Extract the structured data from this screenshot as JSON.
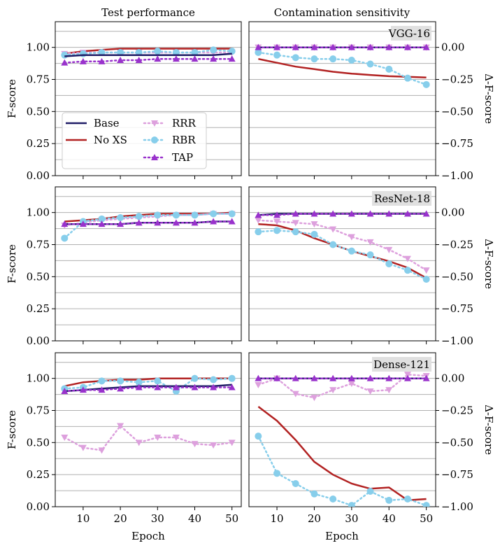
{
  "figure": {
    "column_titles": [
      "Test performance",
      "Contamination sensitivity"
    ],
    "left_ylabel": "F-score",
    "right_ylabel": "Δ-F-score",
    "xlabel": "Epoch"
  },
  "colors": {
    "Base": "#1f1c66",
    "No XS": "#b22222",
    "RRR": "#dda0dd",
    "RBR": "#87ceeb",
    "TAP": "#9932cc"
  },
  "chart_data": [
    {
      "type": "line",
      "row": 0,
      "col": 0,
      "model": "",
      "title": "Test performance",
      "xlabel": "",
      "ylabel": "F-score",
      "xlim": [
        2.5,
        52.5
      ],
      "ylim": [
        0,
        1.2
      ],
      "yticks": [
        0.0,
        0.25,
        0.5,
        0.75,
        1.0
      ],
      "ytick_labels": [
        "0.00",
        "0.25",
        "0.50",
        "0.75",
        "1.00"
      ],
      "grid": true,
      "legend": {
        "position": "center-left",
        "ncol": 2,
        "entries": [
          "Base",
          "No XS",
          "RRR",
          "RBR",
          "TAP"
        ]
      },
      "series": [
        {
          "name": "Base",
          "style": "solid",
          "marker": "none",
          "x": [
            5,
            10,
            15,
            20,
            25,
            30,
            35,
            40,
            45,
            50
          ],
          "y": [
            0.93,
            0.94,
            0.94,
            0.94,
            0.94,
            0.94,
            0.94,
            0.94,
            0.94,
            0.95
          ]
        },
        {
          "name": "No XS",
          "style": "solid",
          "marker": "none",
          "x": [
            5,
            10,
            15,
            20,
            25,
            30,
            35,
            40,
            45,
            50
          ],
          "y": [
            0.95,
            0.97,
            0.98,
            0.99,
            0.99,
            0.99,
            0.99,
            0.99,
            0.99,
            0.99
          ]
        },
        {
          "name": "RRR",
          "style": "dotted",
          "marker": "triangle-down",
          "x": [
            5,
            10,
            15,
            20,
            25,
            30,
            35,
            40,
            45,
            50
          ],
          "y": [
            0.95,
            0.96,
            0.96,
            0.96,
            0.96,
            0.96,
            0.96,
            0.96,
            0.96,
            0.96
          ]
        },
        {
          "name": "RBR",
          "style": "dotted",
          "marker": "circle",
          "x": [
            5,
            10,
            15,
            20,
            25,
            30,
            35,
            40,
            45,
            50
          ],
          "y": [
            0.94,
            0.95,
            0.96,
            0.96,
            0.96,
            0.97,
            0.96,
            0.96,
            0.98,
            0.97
          ]
        },
        {
          "name": "TAP",
          "style": "dotted",
          "marker": "triangle-up",
          "x": [
            5,
            10,
            15,
            20,
            25,
            30,
            35,
            40,
            45,
            50
          ],
          "y": [
            0.88,
            0.89,
            0.89,
            0.9,
            0.9,
            0.91,
            0.91,
            0.91,
            0.91,
            0.91
          ]
        }
      ]
    },
    {
      "type": "line",
      "row": 0,
      "col": 1,
      "model": "VGG-16",
      "title": "Contamination sensitivity",
      "xlabel": "",
      "ylabel": "Δ-F-score",
      "xlim": [
        2.5,
        52.5
      ],
      "ylim": [
        -1.0,
        0.2
      ],
      "yticks": [
        -1.0,
        -0.75,
        -0.5,
        -0.25,
        0.0
      ],
      "ytick_labels": [
        "−1.00",
        "−0.75",
        "−0.50",
        "−0.25",
        "0.00"
      ],
      "grid": true,
      "series": [
        {
          "name": "Base",
          "style": "solid",
          "marker": "none",
          "x": [
            5,
            10,
            15,
            20,
            25,
            30,
            35,
            40,
            45,
            50
          ],
          "y": [
            0.0,
            0.0,
            0.0,
            0.0,
            0.0,
            0.0,
            0.0,
            0.0,
            0.0,
            0.0
          ]
        },
        {
          "name": "No XS",
          "style": "solid",
          "marker": "none",
          "x": [
            5,
            10,
            15,
            20,
            25,
            30,
            35,
            40,
            45,
            50
          ],
          "y": [
            -0.09,
            -0.12,
            -0.15,
            -0.17,
            -0.19,
            -0.205,
            -0.215,
            -0.225,
            -0.23,
            -0.235
          ]
        },
        {
          "name": "RRR",
          "style": "dotted",
          "marker": "triangle-down",
          "x": [
            5,
            10,
            15,
            20,
            25,
            30,
            35,
            40,
            45,
            50
          ],
          "y": [
            0.0,
            0.0,
            0.0,
            0.0,
            0.0,
            0.0,
            0.0,
            0.0,
            0.0,
            0.0
          ]
        },
        {
          "name": "RBR",
          "style": "dotted",
          "marker": "circle",
          "x": [
            5,
            10,
            15,
            20,
            25,
            30,
            35,
            40,
            45,
            50
          ],
          "y": [
            -0.04,
            -0.06,
            -0.08,
            -0.09,
            -0.09,
            -0.1,
            -0.13,
            -0.17,
            -0.24,
            -0.29
          ]
        },
        {
          "name": "TAP",
          "style": "dotted",
          "marker": "triangle-up",
          "x": [
            5,
            10,
            15,
            20,
            25,
            30,
            35,
            40,
            45,
            50
          ],
          "y": [
            0.0,
            0.0,
            0.0,
            0.0,
            0.0,
            0.0,
            0.0,
            0.0,
            0.0,
            0.0
          ]
        }
      ]
    },
    {
      "type": "line",
      "row": 1,
      "col": 0,
      "model": "",
      "title": "",
      "xlabel": "",
      "ylabel": "F-score",
      "xlim": [
        2.5,
        52.5
      ],
      "ylim": [
        0,
        1.2
      ],
      "yticks": [
        0.0,
        0.25,
        0.5,
        0.75,
        1.0
      ],
      "ytick_labels": [
        "0.00",
        "0.25",
        "0.50",
        "0.75",
        "1.00"
      ],
      "grid": true,
      "series": [
        {
          "name": "Base",
          "style": "solid",
          "marker": "none",
          "x": [
            5,
            10,
            15,
            20,
            25,
            30,
            35,
            40,
            45,
            50
          ],
          "y": [
            0.91,
            0.91,
            0.91,
            0.91,
            0.92,
            0.92,
            0.92,
            0.92,
            0.93,
            0.93
          ]
        },
        {
          "name": "No XS",
          "style": "solid",
          "marker": "none",
          "x": [
            5,
            10,
            15,
            20,
            25,
            30,
            35,
            40,
            45,
            50
          ],
          "y": [
            0.93,
            0.94,
            0.95,
            0.97,
            0.98,
            0.99,
            0.99,
            0.99,
            0.99,
            1.0
          ]
        },
        {
          "name": "RRR",
          "style": "dotted",
          "marker": "triangle-down",
          "x": [
            5,
            10,
            15,
            20,
            25,
            30,
            35,
            40,
            45,
            50
          ],
          "y": [
            0.9,
            0.92,
            0.94,
            0.95,
            0.96,
            0.97,
            0.98,
            0.98,
            0.99,
            0.99
          ]
        },
        {
          "name": "RBR",
          "style": "dotted",
          "marker": "circle",
          "x": [
            5,
            10,
            15,
            20,
            25,
            30,
            35,
            40,
            45,
            50
          ],
          "y": [
            0.8,
            0.93,
            0.95,
            0.96,
            0.97,
            0.98,
            0.98,
            0.98,
            0.99,
            0.99
          ]
        },
        {
          "name": "TAP",
          "style": "dotted",
          "marker": "triangle-up",
          "x": [
            5,
            10,
            15,
            20,
            25,
            30,
            35,
            40,
            45,
            50
          ],
          "y": [
            0.91,
            0.91,
            0.91,
            0.91,
            0.92,
            0.92,
            0.92,
            0.92,
            0.93,
            0.93
          ]
        }
      ]
    },
    {
      "type": "line",
      "row": 1,
      "col": 1,
      "model": "ResNet-18",
      "title": "",
      "xlabel": "",
      "ylabel": "Δ-F-score",
      "xlim": [
        2.5,
        52.5
      ],
      "ylim": [
        -1.0,
        0.2
      ],
      "yticks": [
        -1.0,
        -0.75,
        -0.5,
        -0.25,
        0.0
      ],
      "ytick_labels": [
        "−1.00",
        "−0.75",
        "−0.50",
        "−0.25",
        "0.00"
      ],
      "grid": true,
      "series": [
        {
          "name": "Base",
          "style": "solid",
          "marker": "none",
          "x": [
            5,
            10,
            15,
            20,
            25,
            30,
            35,
            40,
            45,
            50
          ],
          "y": [
            -0.02,
            -0.01,
            -0.01,
            -0.01,
            -0.01,
            -0.01,
            -0.01,
            -0.01,
            -0.01,
            -0.01
          ]
        },
        {
          "name": "No XS",
          "style": "solid",
          "marker": "none",
          "x": [
            5,
            10,
            15,
            20,
            25,
            30,
            35,
            40,
            45,
            50
          ],
          "y": [
            -0.09,
            -0.1,
            -0.14,
            -0.2,
            -0.25,
            -0.3,
            -0.34,
            -0.38,
            -0.43,
            -0.51
          ]
        },
        {
          "name": "RRR",
          "style": "dotted",
          "marker": "triangle-down",
          "x": [
            5,
            10,
            15,
            20,
            25,
            30,
            35,
            40,
            45,
            50
          ],
          "y": [
            -0.06,
            -0.07,
            -0.08,
            -0.09,
            -0.13,
            -0.19,
            -0.23,
            -0.29,
            -0.36,
            -0.45
          ]
        },
        {
          "name": "RBR",
          "style": "dotted",
          "marker": "circle",
          "x": [
            5,
            10,
            15,
            20,
            25,
            30,
            35,
            40,
            45,
            50
          ],
          "y": [
            -0.15,
            -0.14,
            -0.15,
            -0.17,
            -0.25,
            -0.3,
            -0.33,
            -0.4,
            -0.45,
            -0.52
          ]
        },
        {
          "name": "TAP",
          "style": "dotted",
          "marker": "triangle-up",
          "x": [
            5,
            10,
            15,
            20,
            25,
            30,
            35,
            40,
            45,
            50
          ],
          "y": [
            -0.02,
            -0.02,
            -0.01,
            -0.01,
            -0.01,
            -0.01,
            -0.01,
            -0.01,
            -0.01,
            -0.01
          ]
        }
      ]
    },
    {
      "type": "line",
      "row": 2,
      "col": 0,
      "model": "",
      "title": "",
      "xlabel": "Epoch",
      "ylabel": "F-score",
      "xlim": [
        2.5,
        52.5
      ],
      "ylim": [
        0,
        1.2
      ],
      "xticks": [
        10,
        20,
        30,
        40,
        50
      ],
      "yticks": [
        0.0,
        0.25,
        0.5,
        0.75,
        1.0
      ],
      "ytick_labels": [
        "0.00",
        "0.25",
        "0.50",
        "0.75",
        "1.00"
      ],
      "grid": true,
      "series": [
        {
          "name": "Base",
          "style": "solid",
          "marker": "none",
          "x": [
            5,
            10,
            15,
            20,
            25,
            30,
            35,
            40,
            45,
            50
          ],
          "y": [
            0.9,
            0.91,
            0.92,
            0.93,
            0.94,
            0.94,
            0.94,
            0.94,
            0.94,
            0.95
          ]
        },
        {
          "name": "No XS",
          "style": "solid",
          "marker": "none",
          "x": [
            5,
            10,
            15,
            20,
            25,
            30,
            35,
            40,
            45,
            50
          ],
          "y": [
            0.94,
            0.97,
            0.98,
            0.99,
            0.99,
            1.0,
            1.0,
            1.0,
            1.0,
            1.0
          ]
        },
        {
          "name": "RRR",
          "style": "dotted",
          "marker": "triangle-down",
          "x": [
            5,
            10,
            15,
            20,
            25,
            30,
            35,
            40,
            45,
            50
          ],
          "y": [
            0.54,
            0.46,
            0.44,
            0.63,
            0.5,
            0.54,
            0.54,
            0.49,
            0.48,
            0.5
          ]
        },
        {
          "name": "RBR",
          "style": "dotted",
          "marker": "circle",
          "x": [
            5,
            10,
            15,
            20,
            25,
            30,
            35,
            40,
            45,
            50
          ],
          "y": [
            0.92,
            0.93,
            0.98,
            0.98,
            0.97,
            0.98,
            0.9,
            1.0,
            0.99,
            1.0
          ]
        },
        {
          "name": "TAP",
          "style": "dotted",
          "marker": "triangle-up",
          "x": [
            5,
            10,
            15,
            20,
            25,
            30,
            35,
            40,
            45,
            50
          ],
          "y": [
            0.9,
            0.91,
            0.91,
            0.92,
            0.93,
            0.93,
            0.93,
            0.93,
            0.93,
            0.93
          ]
        }
      ]
    },
    {
      "type": "line",
      "row": 2,
      "col": 1,
      "model": "Dense-121",
      "title": "",
      "xlabel": "Epoch",
      "ylabel": "Δ-F-score",
      "xlim": [
        2.5,
        52.5
      ],
      "ylim": [
        -1.0,
        0.2
      ],
      "xticks": [
        10,
        20,
        30,
        40,
        50
      ],
      "yticks": [
        -1.0,
        -0.75,
        -0.5,
        -0.25,
        0.0
      ],
      "ytick_labels": [
        "−1.00",
        "−0.75",
        "−0.50",
        "−0.25",
        "0.00"
      ],
      "grid": true,
      "series": [
        {
          "name": "Base",
          "style": "solid",
          "marker": "none",
          "x": [
            5,
            10,
            15,
            20,
            25,
            30,
            35,
            40,
            45,
            50
          ],
          "y": [
            0.0,
            0.0,
            0.0,
            0.0,
            0.0,
            0.0,
            0.0,
            0.0,
            0.0,
            0.0
          ]
        },
        {
          "name": "No XS",
          "style": "solid",
          "marker": "none",
          "x": [
            5,
            10,
            15,
            20,
            25,
            30,
            35,
            40,
            45,
            50
          ],
          "y": [
            -0.22,
            -0.33,
            -0.48,
            -0.65,
            -0.75,
            -0.82,
            -0.86,
            -0.85,
            -0.95,
            -0.94
          ]
        },
        {
          "name": "RRR",
          "style": "dotted",
          "marker": "triangle-down",
          "x": [
            5,
            10,
            15,
            20,
            25,
            30,
            35,
            40,
            45,
            50
          ],
          "y": [
            -0.05,
            0.0,
            -0.12,
            -0.15,
            -0.09,
            -0.04,
            -0.1,
            -0.09,
            0.03,
            0.02
          ]
        },
        {
          "name": "RBR",
          "style": "dotted",
          "marker": "circle",
          "x": [
            5,
            10,
            15,
            20,
            25,
            30,
            35,
            40,
            45,
            50
          ],
          "y": [
            -0.45,
            -0.74,
            -0.82,
            -0.9,
            -0.94,
            -0.99,
            -0.88,
            -0.95,
            -0.94,
            -0.99
          ]
        },
        {
          "name": "TAP",
          "style": "dotted",
          "marker": "triangle-up",
          "x": [
            5,
            10,
            15,
            20,
            25,
            30,
            35,
            40,
            45,
            50
          ],
          "y": [
            0.0,
            0.0,
            0.0,
            0.0,
            0.0,
            0.0,
            0.0,
            0.0,
            0.0,
            0.0
          ]
        }
      ]
    }
  ]
}
